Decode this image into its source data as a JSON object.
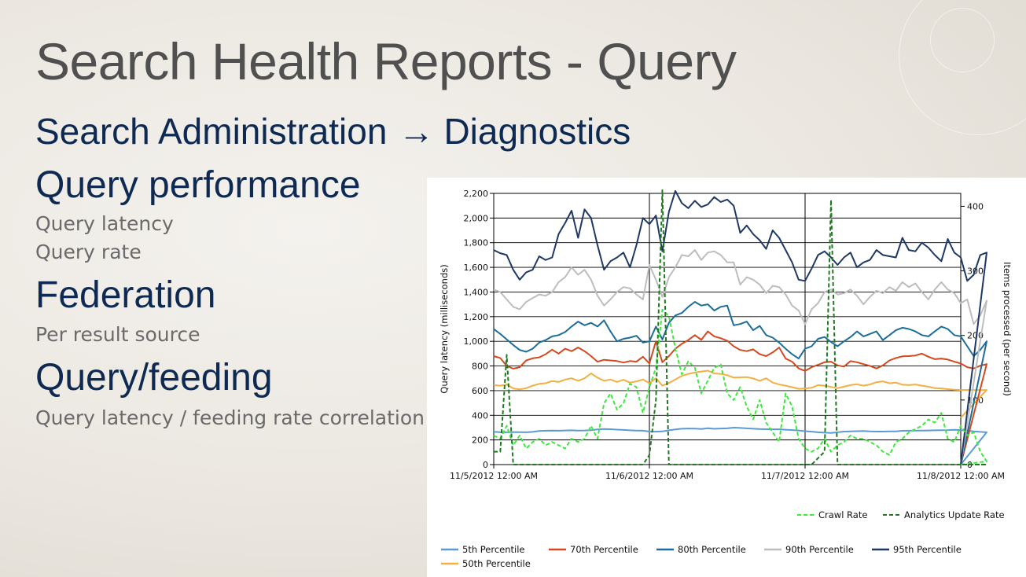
{
  "slide": {
    "title": "Search Health Reports - Query",
    "breadcrumb": {
      "from": "Search Administration",
      "arrow": "→",
      "to": "Diagnostics"
    },
    "sections": [
      {
        "heading": "Query performance",
        "items": [
          "Query latency",
          "Query rate"
        ]
      },
      {
        "heading": "Federation",
        "items": [
          "Per result source"
        ]
      },
      {
        "heading": "Query/feeding",
        "items": [
          "Query latency / feeding rate correlation"
        ]
      }
    ]
  },
  "chart_data": {
    "type": "line",
    "title": "",
    "ylabel": "Query latency (milliseconds)",
    "y2label": "Items processed (per second)",
    "ylim": [
      0,
      2200
    ],
    "yticks": [
      0,
      200,
      400,
      600,
      800,
      1000,
      1200,
      1400,
      1600,
      1800,
      2000,
      2200
    ],
    "ytick_labels": [
      "0",
      "200",
      "400",
      "600",
      "800",
      "1,000",
      "1,200",
      "1,400",
      "1,600",
      "1,800",
      "2,000",
      "2,200"
    ],
    "y2lim": [
      0,
      420
    ],
    "y2ticks": [
      0,
      100,
      200,
      300,
      400
    ],
    "xlim": [
      "11/5/2012 12:00 AM",
      "11/8/2012 12:00 AM"
    ],
    "xtick_labels": [
      "11/5/2012 12:00 AM",
      "11/6/2012 12:00 AM",
      "11/7/2012 12:00 AM",
      "11/8/2012 12:00 AM"
    ],
    "x_interval": "hourly",
    "grid": true,
    "legend_top": [
      "Crawl Rate",
      "Analytics Update Rate"
    ],
    "legend_bottom": [
      "5th Percentile",
      "70th Percentile",
      "80th Percentile",
      "90th Percentile",
      "95th Percentile",
      "50th Percentile"
    ],
    "series": [
      {
        "name": "5th Percentile",
        "axis": "left",
        "color": "#5b9bd5",
        "dash": false,
        "values": [
          265,
          263,
          262,
          264,
          263,
          262,
          265,
          272,
          275,
          276,
          275,
          277,
          278,
          276,
          277,
          279,
          285,
          288,
          287,
          284,
          281,
          278,
          276,
          275,
          268,
          267,
          269,
          278,
          285,
          291,
          293,
          292,
          289,
          295,
          290,
          293,
          294,
          300,
          297,
          294,
          291,
          288,
          287,
          286,
          286,
          283,
          280,
          277,
          271,
          267,
          262,
          259,
          257,
          262,
          268,
          270,
          271,
          273,
          270,
          268,
          268,
          270,
          270,
          274,
          275,
          276,
          276,
          277,
          278,
          279,
          280,
          282,
          280,
          276,
          270,
          265,
          262,
          0
        ]
      },
      {
        "name": "50th Percentile",
        "axis": "left",
        "color": "#f2b042",
        "dash": false,
        "values": [
          645,
          640,
          650,
          618,
          610,
          620,
          640,
          655,
          660,
          678,
          670,
          690,
          700,
          680,
          700,
          740,
          705,
          680,
          690,
          670,
          688,
          665,
          675,
          690,
          660,
          700,
          640,
          662,
          690,
          720,
          735,
          747,
          755,
          762,
          740,
          735,
          725,
          705,
          708,
          710,
          698,
          680,
          700,
          665,
          650,
          640,
          628,
          615,
          618,
          623,
          645,
          640,
          630,
          620,
          632,
          645,
          652,
          640,
          650,
          668,
          675,
          660,
          665,
          648,
          645,
          650,
          640,
          632,
          620,
          618,
          612,
          607,
          605,
          605,
          605,
          604,
          605,
          380
        ]
      },
      {
        "name": "70th Percentile",
        "axis": "left",
        "color": "#d24a1e",
        "dash": false,
        "values": [
          880,
          865,
          800,
          778,
          790,
          845,
          862,
          870,
          895,
          932,
          900,
          940,
          920,
          950,
          920,
          880,
          835,
          850,
          845,
          840,
          828,
          840,
          835,
          875,
          820,
          1000,
          830,
          880,
          940,
          980,
          1010,
          1050,
          1012,
          1080,
          1040,
          1025,
          1005,
          960,
          930,
          920,
          935,
          895,
          880,
          910,
          950,
          860,
          835,
          780,
          760,
          790,
          810,
          830,
          835,
          805,
          795,
          840,
          830,
          815,
          800,
          780,
          805,
          845,
          865,
          878,
          880,
          885,
          900,
          875,
          855,
          860,
          852,
          835,
          820,
          790,
          780,
          802,
          815,
          0
        ]
      },
      {
        "name": "80th Percentile",
        "axis": "left",
        "color": "#1c6d9a",
        "dash": false,
        "values": [
          1100,
          1060,
          1015,
          970,
          930,
          915,
          940,
          990,
          1010,
          1040,
          1050,
          1075,
          1120,
          1160,
          1130,
          1150,
          1120,
          1170,
          1080,
          1000,
          1020,
          1030,
          1045,
          990,
          1000,
          1120,
          1015,
          1150,
          1210,
          1230,
          1280,
          1320,
          1290,
          1300,
          1250,
          1280,
          1290,
          1130,
          1140,
          1160,
          1090,
          1125,
          1050,
          1030,
          990,
          940,
          895,
          860,
          940,
          960,
          1020,
          1035,
          995,
          960,
          1000,
          1035,
          1080,
          1040,
          1060,
          1080,
          1010,
          1050,
          1090,
          1110,
          1100,
          1080,
          1050,
          1040,
          1080,
          1120,
          1100,
          1050,
          1040,
          960,
          880,
          930,
          1000,
          0
        ]
      },
      {
        "name": "90th Percentile",
        "axis": "left",
        "color": "#bdbdbd",
        "dash": false,
        "values": [
          1420,
          1400,
          1340,
          1280,
          1260,
          1320,
          1350,
          1380,
          1370,
          1400,
          1480,
          1520,
          1600,
          1540,
          1580,
          1500,
          1370,
          1290,
          1340,
          1400,
          1440,
          1430,
          1380,
          1340,
          1620,
          1500,
          1360,
          1520,
          1600,
          1700,
          1690,
          1740,
          1660,
          1720,
          1730,
          1700,
          1640,
          1640,
          1460,
          1520,
          1500,
          1460,
          1390,
          1450,
          1440,
          1380,
          1290,
          1250,
          1140,
          1260,
          1310,
          1400,
          1420,
          1380,
          1390,
          1420,
          1370,
          1300,
          1360,
          1410,
          1390,
          1440,
          1410,
          1480,
          1440,
          1470,
          1400,
          1340,
          1420,
          1480,
          1420,
          1390,
          1310,
          1340,
          1140,
          1210,
          1330,
          0
        ]
      },
      {
        "name": "95th Percentile",
        "axis": "left",
        "color": "#1f3864",
        "dash": false,
        "values": [
          1740,
          1715,
          1700,
          1580,
          1500,
          1560,
          1580,
          1690,
          1660,
          1680,
          1870,
          1960,
          2060,
          1840,
          2070,
          2000,
          1780,
          1580,
          1650,
          1680,
          1720,
          1600,
          1780,
          2000,
          1950,
          2020,
          1730,
          2050,
          2220,
          2120,
          2080,
          2140,
          2090,
          2110,
          2170,
          2130,
          2150,
          2100,
          1880,
          1940,
          1870,
          1820,
          1750,
          1900,
          1840,
          1740,
          1640,
          1500,
          1490,
          1590,
          1700,
          1730,
          1680,
          1620,
          1680,
          1720,
          1600,
          1640,
          1660,
          1740,
          1700,
          1690,
          1680,
          1840,
          1740,
          1730,
          1800,
          1760,
          1700,
          1650,
          1830,
          1720,
          1680,
          1490,
          1540,
          1700,
          1720,
          0
        ]
      },
      {
        "name": "Crawl Rate",
        "axis": "right",
        "color": "#3ee83e",
        "dash": true,
        "values": [
          45,
          40,
          60,
          30,
          45,
          25,
          35,
          40,
          30,
          35,
          30,
          25,
          40,
          35,
          40,
          60,
          40,
          95,
          110,
          85,
          95,
          125,
          120,
          80,
          120,
          150,
          240,
          230,
          180,
          140,
          160,
          150,
          110,
          130,
          150,
          155,
          110,
          100,
          120,
          90,
          70,
          100,
          65,
          50,
          35,
          110,
          90,
          40,
          25,
          20,
          25,
          40,
          20,
          30,
          35,
          45,
          40,
          40,
          35,
          30,
          20,
          15,
          35,
          40,
          50,
          55,
          60,
          70,
          65,
          80,
          40,
          35,
          60,
          45,
          50,
          20,
          5,
          0
        ]
      },
      {
        "name": "Analytics Update Rate",
        "axis": "right",
        "color": "#1e7a1e",
        "dash": true,
        "values": [
          20,
          20,
          170,
          0,
          0,
          0,
          0,
          0,
          0,
          0,
          0,
          0,
          0,
          0,
          0,
          0,
          0,
          0,
          0,
          0,
          0,
          0,
          0,
          0,
          15,
          100,
          425,
          0,
          0,
          0,
          0,
          0,
          0,
          0,
          0,
          0,
          0,
          0,
          0,
          0,
          0,
          0,
          0,
          0,
          0,
          0,
          0,
          0,
          0,
          0,
          10,
          20,
          410,
          0,
          0,
          0,
          0,
          0,
          0,
          0,
          0,
          0,
          0,
          0,
          0,
          0,
          0,
          0,
          0,
          0,
          0,
          0,
          0,
          0,
          0,
          0,
          0,
          0
        ]
      }
    ]
  }
}
